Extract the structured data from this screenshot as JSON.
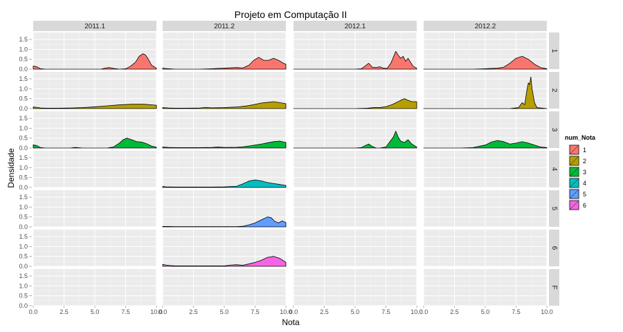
{
  "chart_data": {
    "type": "area",
    "title": "Projeto em Computação II",
    "xlabel": "Nota",
    "ylabel": "Densidade",
    "xlim": [
      0,
      10
    ],
    "ylim": [
      0,
      1.85
    ],
    "x_ticks": [
      0,
      2.5,
      5,
      7.5,
      10
    ],
    "x_tick_labels": [
      "0.0",
      "2.5",
      "5.0",
      "7.5",
      "10.0"
    ],
    "y_ticks": [
      0,
      0.5,
      1,
      1.5
    ],
    "y_tick_labels": [
      "0.0",
      "0.5",
      "1.0",
      "1.5"
    ],
    "grid": true,
    "legend_position": "right",
    "columns": [
      "2011.1",
      "2011.2",
      "2012.1",
      "2012.2"
    ],
    "rows": [
      "1",
      "2",
      "3",
      "4",
      "5",
      "6",
      "F"
    ],
    "legend": {
      "title": "num_Nota",
      "entries": [
        {
          "label": "1",
          "color": "#F8766D"
        },
        {
          "label": "2",
          "color": "#B79F00"
        },
        {
          "label": "3",
          "color": "#00BA38"
        },
        {
          "label": "4",
          "color": "#00BFC4"
        },
        {
          "label": "5",
          "color": "#619CFF"
        },
        {
          "label": "6",
          "color": "#F564E3"
        }
      ]
    },
    "panels": [
      {
        "column": "2011.1",
        "row": "1",
        "x": [
          0,
          0.3,
          0.6,
          1,
          2,
          5.5,
          5.9,
          6.2,
          6.6,
          7,
          7.5,
          7.9,
          8.3,
          8.6,
          8.9,
          9.1,
          9.3,
          9.6,
          10
        ],
        "y": [
          0.16,
          0.12,
          0.02,
          0,
          0,
          0,
          0.06,
          0.08,
          0.03,
          0,
          0.02,
          0.15,
          0.35,
          0.65,
          0.78,
          0.72,
          0.55,
          0.2,
          0.05
        ]
      },
      {
        "column": "2011.1",
        "row": "2",
        "x": [
          0,
          0.3,
          0.6,
          1,
          2,
          3,
          4,
          5,
          6,
          7,
          8,
          9,
          10
        ],
        "y": [
          0.08,
          0.06,
          0.03,
          0.02,
          0.02,
          0.03,
          0.05,
          0.09,
          0.14,
          0.19,
          0.22,
          0.22,
          0.17
        ]
      },
      {
        "column": "2011.1",
        "row": "3",
        "x": [
          0,
          0.3,
          0.6,
          1,
          3,
          3.4,
          4,
          6,
          6.5,
          7,
          7.3,
          7.6,
          8,
          8.4,
          8.8,
          9.2,
          9.6,
          10
        ],
        "y": [
          0.16,
          0.12,
          0.02,
          0,
          0,
          0.03,
          0,
          0,
          0.05,
          0.25,
          0.42,
          0.5,
          0.42,
          0.32,
          0.3,
          0.22,
          0.1,
          0.04
        ]
      },
      {
        "column": "2011.2",
        "row": "1",
        "x": [
          0,
          0.3,
          1,
          3,
          4,
          5,
          6,
          6.5,
          7,
          7.4,
          7.8,
          8.2,
          8.6,
          9,
          9.4,
          9.8,
          10
        ],
        "y": [
          0.05,
          0.03,
          0,
          0,
          0.02,
          0.05,
          0.08,
          0.06,
          0.2,
          0.45,
          0.6,
          0.45,
          0.45,
          0.55,
          0.45,
          0.3,
          0.25
        ]
      },
      {
        "column": "2011.2",
        "row": "2",
        "x": [
          0,
          0.5,
          1,
          2,
          3,
          3.5,
          4,
          5,
          6,
          7,
          8,
          9,
          9.5,
          10
        ],
        "y": [
          0.05,
          0.03,
          0.02,
          0.02,
          0.03,
          0.06,
          0.04,
          0.05,
          0.08,
          0.15,
          0.28,
          0.35,
          0.3,
          0.25
        ]
      },
      {
        "column": "2011.2",
        "row": "3",
        "x": [
          0,
          0.5,
          1,
          3,
          4,
          4.5,
          5,
          6,
          6.5,
          7,
          8,
          9,
          9.5,
          10
        ],
        "y": [
          0.05,
          0.03,
          0.02,
          0.02,
          0.03,
          0.05,
          0.03,
          0.04,
          0.06,
          0.1,
          0.2,
          0.32,
          0.35,
          0.28
        ]
      },
      {
        "column": "2011.2",
        "row": "4",
        "x": [
          0,
          0.3,
          1,
          2,
          3,
          4,
          5,
          6,
          6.5,
          7,
          7.5,
          8,
          8.5,
          9,
          9.5,
          10
        ],
        "y": [
          0.05,
          0.03,
          0.02,
          0.02,
          0.02,
          0.02,
          0.03,
          0.06,
          0.18,
          0.32,
          0.38,
          0.33,
          0.25,
          0.2,
          0.15,
          0.1
        ]
      },
      {
        "column": "2011.2",
        "row": "5",
        "x": [
          0,
          0.5,
          1,
          3,
          5,
          6,
          6.5,
          7,
          7.5,
          8,
          8.5,
          8.8,
          9.1,
          9.4,
          9.7,
          10
        ],
        "y": [
          0.02,
          0.02,
          0.01,
          0.01,
          0.01,
          0.01,
          0.03,
          0.1,
          0.2,
          0.35,
          0.5,
          0.47,
          0.28,
          0.2,
          0.3,
          0.22
        ]
      },
      {
        "column": "2011.2",
        "row": "6",
        "x": [
          0,
          0.3,
          0.6,
          1,
          3,
          5,
          5.5,
          6,
          6.5,
          7,
          7.5,
          8,
          8.5,
          9,
          9.5,
          10
        ],
        "y": [
          0.1,
          0.06,
          0.04,
          0.02,
          0.02,
          0.02,
          0.06,
          0.08,
          0.05,
          0.12,
          0.2,
          0.3,
          0.45,
          0.5,
          0.4,
          0.2
        ]
      },
      {
        "column": "2012.1",
        "row": "1",
        "x": [
          0,
          5,
          5.5,
          5.8,
          6.1,
          6.4,
          6.7,
          7,
          7.3,
          7.6,
          7.9,
          8.1,
          8.3,
          8.5,
          8.7,
          8.9,
          9.1,
          9.3,
          9.5,
          9.7,
          10
        ],
        "y": [
          0,
          0,
          0.02,
          0.15,
          0.3,
          0.1,
          0.08,
          0.12,
          0.05,
          0.04,
          0.3,
          0.6,
          0.9,
          0.7,
          0.55,
          0.65,
          0.4,
          0.55,
          0.35,
          0.15,
          0.05
        ]
      },
      {
        "column": "2012.1",
        "row": "2",
        "x": [
          0,
          5,
          6,
          6.5,
          7,
          7.5,
          8,
          8.5,
          8.8,
          9,
          9.3,
          9.6,
          10
        ],
        "y": [
          0,
          0,
          0.02,
          0.05,
          0.05,
          0.1,
          0.2,
          0.35,
          0.45,
          0.5,
          0.42,
          0.35,
          0.35
        ]
      },
      {
        "column": "2012.1",
        "row": "3",
        "x": [
          0,
          5,
          5.5,
          5.8,
          6.1,
          6.4,
          6.7,
          7,
          7.5,
          7.8,
          8.1,
          8.3,
          8.5,
          8.7,
          9,
          9.3,
          9.6,
          10
        ],
        "y": [
          0,
          0,
          0.02,
          0.12,
          0.2,
          0.08,
          0,
          0,
          0.05,
          0.3,
          0.55,
          0.85,
          0.55,
          0.35,
          0.28,
          0.42,
          0.2,
          0.05
        ]
      },
      {
        "column": "2012.2",
        "row": "1",
        "x": [
          0,
          4,
          5,
          6,
          6.5,
          7,
          7.5,
          8,
          8.5,
          9,
          9.5,
          10
        ],
        "y": [
          0,
          0,
          0.02,
          0.05,
          0.1,
          0.3,
          0.55,
          0.65,
          0.5,
          0.25,
          0.08,
          0.02
        ]
      },
      {
        "column": "2012.2",
        "row": "2",
        "x": [
          0,
          7,
          7.7,
          8,
          8.2,
          8.4,
          8.5,
          8.6,
          8.7,
          8.8,
          9,
          9.2,
          10
        ],
        "y": [
          0,
          0,
          0.05,
          0.3,
          0.2,
          1.0,
          1.3,
          1.2,
          1.6,
          1.0,
          0.3,
          0.05,
          0
        ]
      },
      {
        "column": "2012.2",
        "row": "3",
        "x": [
          0,
          3,
          4,
          5,
          5.5,
          6,
          6.5,
          7,
          7.5,
          8,
          8.5,
          9,
          9.5,
          10
        ],
        "y": [
          0,
          0,
          0.02,
          0.15,
          0.3,
          0.38,
          0.32,
          0.2,
          0.25,
          0.32,
          0.25,
          0.15,
          0.05,
          0.02
        ]
      }
    ]
  }
}
